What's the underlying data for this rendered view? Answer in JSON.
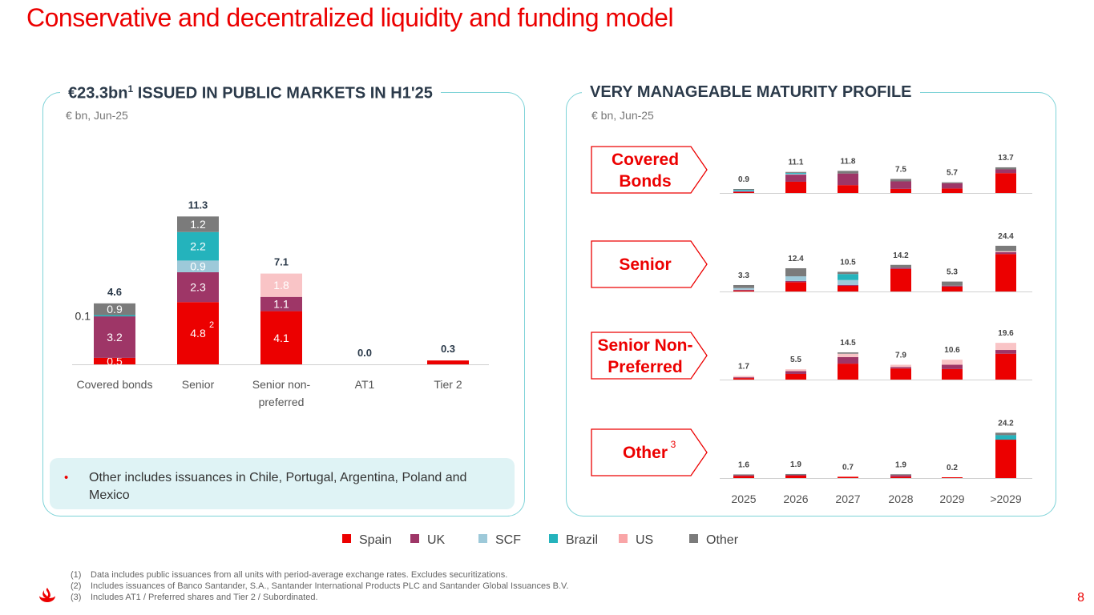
{
  "page": {
    "title": "Conservative and decentralized liquidity and funding model",
    "page_number": "8"
  },
  "colors": {
    "Spain": "#EC0000",
    "UK": "#9E3667",
    "SCF": "#9DC9D9",
    "Brazil": "#24B3BC",
    "US": "#F9C4C6",
    "Other": "#7B7B7B"
  },
  "left_panel": {
    "heading_pre": "€23.3bn",
    "heading_sup": "1",
    "heading_post": " ISSUED IN PUBLIC MARKETS IN H1'25",
    "subtitle": "€ bn, Jun-25",
    "note": "Other includes issuances in Chile, Portugal, Argentina, Poland and Mexico"
  },
  "right_panel": {
    "heading": "VERY MANAGEABLE MATURITY PROFILE",
    "subtitle": "€ bn, Jun-25"
  },
  "legend": [
    {
      "name": "Spain",
      "color": "#EC0000"
    },
    {
      "name": "UK",
      "color": "#9E3667"
    },
    {
      "name": "SCF",
      "color": "#9DC9D9"
    },
    {
      "name": "Brazil",
      "color": "#24B3BC"
    },
    {
      "name": "US",
      "color": "#F9A5A7"
    },
    {
      "name": "Other",
      "color": "#7B7B7B"
    }
  ],
  "footnotes": [
    {
      "num": "(1)",
      "text": "Data includes public issuances from all units with period-average exchange rates. Excludes securitizations."
    },
    {
      "num": "(2)",
      "text": "Includes issuances of Banco Santander, S.A., Santander International Products PLC and Santander Global Issuances B.V."
    },
    {
      "num": "(3)",
      "text": "Includes AT1 / Preferred shares and Tier 2 / Subordinated."
    }
  ],
  "chart_data": [
    {
      "type": "bar",
      "stacked": true,
      "title": "€23.3bn ISSUED IN PUBLIC MARKETS IN H1'25",
      "units": "€ bn, Jun-25",
      "categories": [
        [
          "Covered bonds"
        ],
        [
          "Senior"
        ],
        [
          "Senior non-",
          "preferred"
        ],
        [
          "AT1"
        ],
        [
          "Tier 2"
        ]
      ],
      "totals": [
        "4.6",
        "11.3",
        "7.1",
        "0.0",
        "0.3"
      ],
      "series": [
        {
          "name": "Spain",
          "values": [
            0.5,
            4.8,
            4.1,
            0,
            0.3
          ],
          "labels": [
            "0.5",
            "4.8",
            "4.1",
            "",
            ""
          ]
        },
        {
          "name": "UK",
          "values": [
            3.2,
            2.3,
            1.1,
            0,
            0
          ],
          "labels": [
            "3.2",
            "2.3",
            "1.1",
            "",
            ""
          ]
        },
        {
          "name": "Brazil",
          "values": [
            0.1,
            0,
            0,
            0,
            0
          ],
          "labels": [
            "0.1",
            "",
            "",
            "",
            ""
          ]
        },
        {
          "name": "SCF",
          "values": [
            0,
            0.9,
            0,
            0,
            0
          ],
          "labels": [
            "",
            "0.9",
            "",
            "",
            ""
          ]
        },
        {
          "name": "Brazil",
          "values": [
            0,
            2.2,
            0,
            0,
            0
          ],
          "labels": [
            "",
            "2.2",
            "",
            "",
            ""
          ]
        },
        {
          "name": "US",
          "values": [
            0,
            0,
            1.8,
            0,
            0
          ],
          "labels": [
            "",
            "",
            "1.8",
            "",
            ""
          ]
        },
        {
          "name": "Other",
          "values": [
            0.9,
            1.2,
            0,
            0,
            0
          ],
          "labels": [
            "0.9",
            "1.2",
            "",
            "",
            ""
          ]
        }
      ],
      "annotations": [
        {
          "text": "2",
          "category": "Senior"
        }
      ],
      "ylim": [
        0,
        12
      ]
    },
    {
      "type": "bar",
      "stacked": true,
      "title": "VERY MANAGEABLE MATURITY PROFILE",
      "units": "€ bn, Jun-25",
      "categories": [
        "2025",
        "2026",
        "2027",
        "2028",
        "2029",
        ">2029"
      ],
      "rows": [
        {
          "label": [
            "Covered",
            "Bonds"
          ],
          "sup": "",
          "totals": [
            "0.9",
            "11.1",
            "11.8",
            "7.5",
            "5.7",
            "13.7"
          ],
          "series": [
            {
              "name": "Spain",
              "values": [
                0.1,
                6.0,
                4.2,
                2.2,
                2.4,
                10.6
              ]
            },
            {
              "name": "UK",
              "values": [
                0.1,
                3.8,
                6.2,
                4.0,
                2.8,
                2.0
              ]
            },
            {
              "name": "SCF",
              "values": [
                0.2,
                0.5,
                0,
                0,
                0,
                0
              ]
            },
            {
              "name": "Brazil",
              "values": [
                0.3,
                0.3,
                0,
                0,
                0,
                0
              ]
            },
            {
              "name": "Other",
              "values": [
                0.2,
                0.5,
                1.4,
                1.3,
                0.5,
                1.1
              ]
            }
          ]
        },
        {
          "label": [
            "Senior"
          ],
          "sup": "",
          "totals": [
            "3.3",
            "12.4",
            "10.5",
            "14.2",
            "5.3",
            "24.4"
          ],
          "series": [
            {
              "name": "Spain",
              "values": [
                0.5,
                5.0,
                3.0,
                12.0,
                2.6,
                20.0
              ]
            },
            {
              "name": "UK",
              "values": [
                0.3,
                0.6,
                0.5,
                0.7,
                0.5,
                1.0
              ]
            },
            {
              "name": "SCF",
              "values": [
                0.9,
                2.5,
                2.6,
                0,
                0,
                0
              ]
            },
            {
              "name": "Brazil",
              "values": [
                0,
                0,
                3.2,
                0,
                0,
                0
              ]
            },
            {
              "name": "US",
              "values": [
                0,
                0,
                0,
                0,
                0,
                0.5
              ]
            },
            {
              "name": "Other",
              "values": [
                1.6,
                4.3,
                1.2,
                1.5,
                2.2,
                2.9
              ]
            }
          ]
        },
        {
          "label": [
            "Senior Non-",
            "Preferred"
          ],
          "sup": "",
          "totals": [
            "1.7",
            "5.5",
            "14.5",
            "7.9",
            "10.6",
            "19.6"
          ],
          "series": [
            {
              "name": "Spain",
              "values": [
                0.8,
                3.0,
                8.5,
                5.9,
                5.6,
                13.8
              ]
            },
            {
              "name": "UK",
              "values": [
                0.2,
                1.5,
                3.5,
                0.8,
                2.3,
                2.0
              ]
            },
            {
              "name": "US",
              "values": [
                0.7,
                1.0,
                1.8,
                1.2,
                2.7,
                3.8
              ]
            },
            {
              "name": "Other",
              "values": [
                0,
                0,
                0.7,
                0,
                0,
                0
              ]
            }
          ]
        },
        {
          "label": [
            "Other"
          ],
          "sup": "3",
          "totals": [
            "1.6",
            "1.9",
            "0.7",
            "1.9",
            "0.2",
            "24.2"
          ],
          "series": [
            {
              "name": "Spain",
              "values": [
                1.1,
                1.3,
                0.7,
                0.7,
                0.2,
                20.5
              ]
            },
            {
              "name": "UK",
              "values": [
                0.3,
                0.3,
                0,
                0.9,
                0,
                0
              ]
            },
            {
              "name": "Brazil",
              "values": [
                0,
                0,
                0,
                0,
                0,
                2.4
              ]
            },
            {
              "name": "Other",
              "values": [
                0.2,
                0.3,
                0,
                0.3,
                0,
                1.3
              ]
            }
          ]
        }
      ]
    }
  ]
}
